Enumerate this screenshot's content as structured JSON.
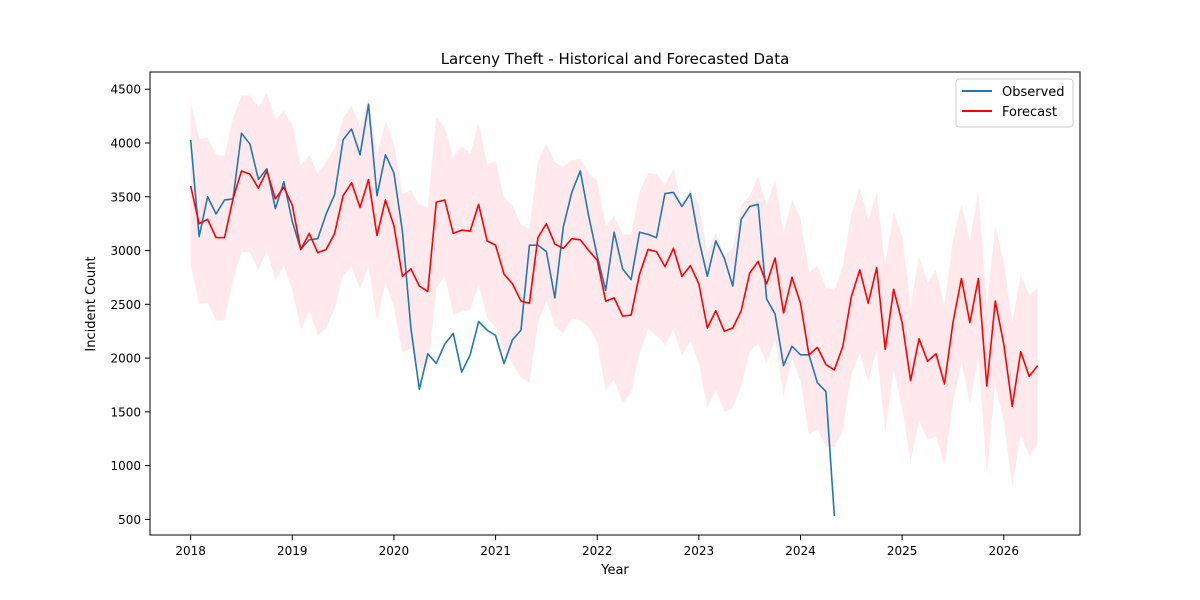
{
  "chart_data": {
    "type": "line",
    "title": "Larceny Theft - Historical and Forecasted Data",
    "xlabel": "Year",
    "ylabel": "Incident Count",
    "xlim": [
      2017.6,
      2026.75
    ],
    "ylim": [
      355,
      4660
    ],
    "xticks": [
      2018,
      2019,
      2020,
      2021,
      2022,
      2023,
      2024,
      2025,
      2026
    ],
    "yticks": [
      500,
      1000,
      1500,
      2000,
      2500,
      3000,
      3500,
      4000,
      4500
    ],
    "grid": false,
    "legend": {
      "position": "top-right",
      "entries": [
        "Observed",
        "Forecast"
      ]
    },
    "colors": {
      "observed": "#1f77b4",
      "forecast": "#ff0000",
      "band": "#ffc0cb"
    },
    "series": [
      {
        "name": "Observed",
        "x_start": 2018.0,
        "x_step": 0.0833333,
        "values": [
          4030,
          3130,
          3500,
          3340,
          3470,
          3480,
          4090,
          3990,
          3660,
          3760,
          3390,
          3640,
          3270,
          3010,
          3100,
          3110,
          3340,
          3520,
          4030,
          4130,
          3890,
          4360,
          3510,
          3890,
          3720,
          3180,
          2280,
          1710,
          2040,
          1950,
          2130,
          2230,
          1870,
          2030,
          2340,
          2260,
          2210,
          1950,
          2170,
          2260,
          3050,
          3050,
          2990,
          2560,
          3220,
          3540,
          3740,
          3320,
          2950,
          2630,
          3170,
          2830,
          2730,
          3170,
          3150,
          3120,
          3530,
          3540,
          3410,
          3530,
          3100,
          2760,
          3090,
          2930,
          2670,
          3290,
          3410,
          3430,
          2550,
          2410,
          1930,
          2110,
          2030,
          2030,
          1770,
          1690,
          530
        ]
      },
      {
        "name": "Forecast",
        "x_start": 2018.0,
        "x_step": 0.0833333,
        "values": [
          3600,
          3250,
          3290,
          3120,
          3120,
          3480,
          3740,
          3710,
          3580,
          3740,
          3480,
          3590,
          3420,
          3010,
          3160,
          2980,
          3010,
          3160,
          3510,
          3630,
          3400,
          3660,
          3140,
          3470,
          3230,
          2760,
          2830,
          2670,
          2620,
          3450,
          3470,
          3160,
          3190,
          3180,
          3430,
          3090,
          3050,
          2780,
          2690,
          2530,
          2510,
          3120,
          3250,
          3060,
          3020,
          3110,
          3100,
          3000,
          2910,
          2530,
          2560,
          2390,
          2400,
          2780,
          3010,
          2990,
          2850,
          3020,
          2760,
          2860,
          2690,
          2280,
          2440,
          2250,
          2280,
          2440,
          2790,
          2900,
          2690,
          2930,
          2420,
          2750,
          2510,
          2030,
          2100,
          1940,
          1890,
          2110,
          2570,
          2820,
          2510,
          2840,
          2080,
          2640,
          2330,
          1790,
          2180,
          1970,
          2040,
          1760,
          2330,
          2740,
          2330,
          2740,
          1740,
          2530,
          2130,
          1550,
          2060,
          1830,
          1930
        ]
      }
    ],
    "confidence_band": {
      "x_start": 2018.0,
      "x_step": 0.0833333,
      "upper": [
        4390,
        4040,
        4050,
        3890,
        3880,
        4230,
        4440,
        4440,
        4330,
        4470,
        4210,
        4300,
        4170,
        3790,
        3890,
        3710,
        3830,
        3950,
        4230,
        4350,
        4150,
        4420,
        3900,
        4210,
        3990,
        3530,
        3560,
        3430,
        3400,
        4240,
        4150,
        3870,
        3970,
        3900,
        4190,
        3800,
        3830,
        3490,
        3420,
        3240,
        3200,
        3830,
        4000,
        3820,
        3780,
        3840,
        3850,
        3720,
        3650,
        3230,
        3320,
        3150,
        3150,
        3550,
        3720,
        3710,
        3610,
        3760,
        3440,
        3580,
        3420,
        2980,
        3170,
        2950,
        3020,
        3420,
        3510,
        3690,
        3420,
        3660,
        3160,
        3480,
        3300,
        2800,
        2860,
        2660,
        2630,
        2860,
        3340,
        3590,
        3280,
        3540,
        2860,
        3360,
        3140,
        2480,
        2950,
        2700,
        2820,
        2490,
        3100,
        3430,
        3090,
        3560,
        2480,
        3230,
        2900,
        2330,
        2780,
        2590,
        2650
      ],
      "lower": [
        2870,
        2500,
        2520,
        2350,
        2350,
        2720,
        2990,
        2980,
        2820,
        3000,
        2720,
        2860,
        2630,
        2260,
        2440,
        2210,
        2280,
        2460,
        2770,
        2850,
        2640,
        2860,
        2340,
        2710,
        2480,
        2050,
        2090,
        1910,
        1880,
        2650,
        2760,
        2410,
        2430,
        2450,
        2680,
        2370,
        2290,
        2060,
        1950,
        1820,
        1770,
        2330,
        2530,
        2300,
        2230,
        2370,
        2350,
        2290,
        2150,
        1700,
        1800,
        1580,
        1680,
        2040,
        2270,
        2210,
        2120,
        2260,
        2020,
        2160,
        1950,
        1540,
        1700,
        1500,
        1530,
        1740,
        2060,
        2140,
        1950,
        2180,
        1640,
        2000,
        1790,
        1290,
        1340,
        1180,
        1170,
        1330,
        1850,
        2040,
        1780,
        2080,
        1300,
        1900,
        1530,
        1040,
        1420,
        1240,
        1270,
        1000,
        1580,
        1960,
        1580,
        2010,
        920,
        1770,
        1410,
        800,
        1290,
        1090,
        1200
      ]
    }
  }
}
